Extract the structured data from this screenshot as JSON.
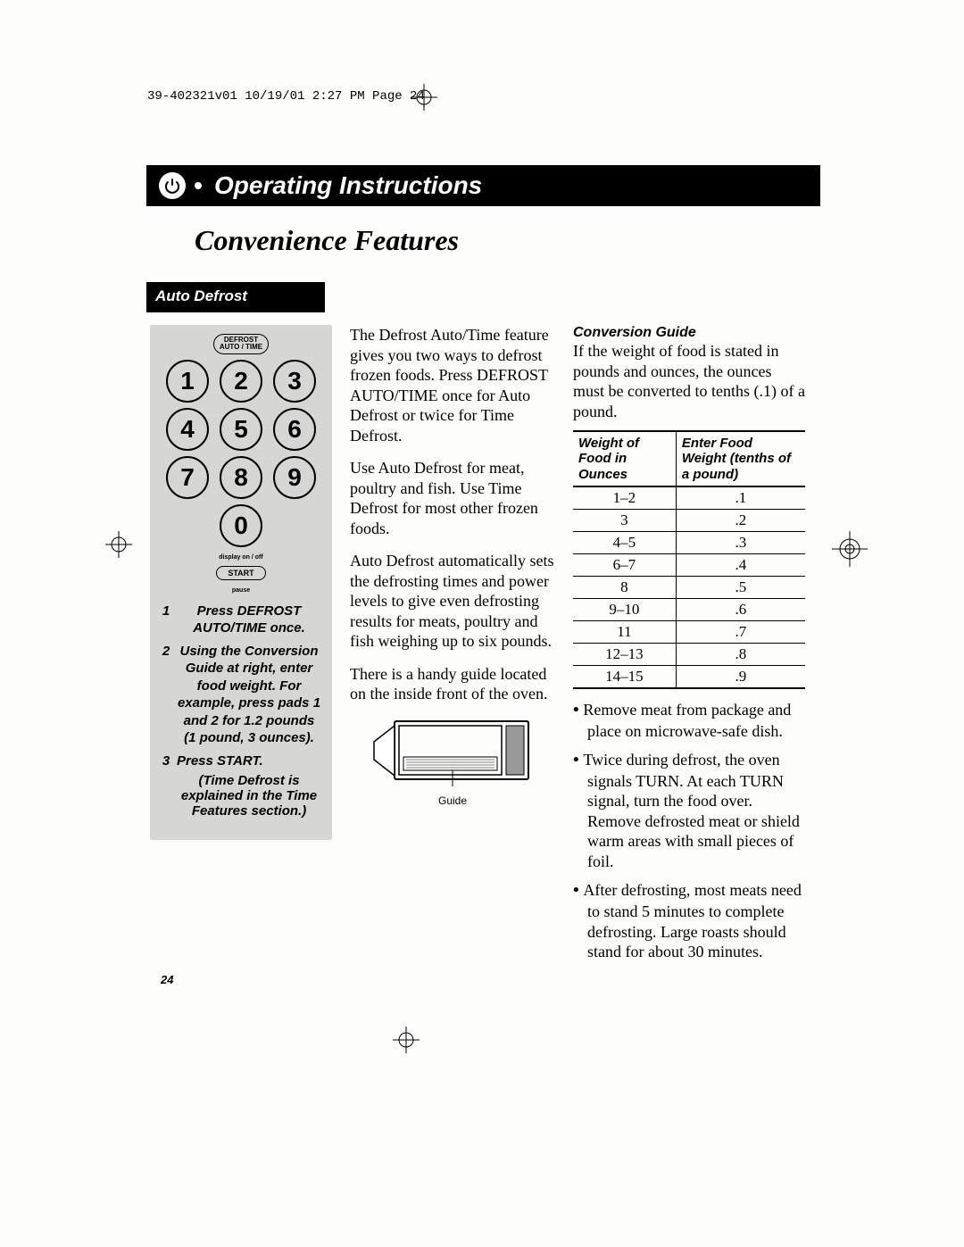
{
  "page_header": "39-402321v01  10/19/01  2:27 PM  Page 24",
  "banner_title": "Operating Instructions",
  "subtitle": "Convenience Features",
  "section_label": "Auto Defrost",
  "keypad": {
    "defrost_line1": "DEFROST",
    "defrost_line2": "AUTO / TIME",
    "numbers": [
      "1",
      "2",
      "3",
      "4",
      "5",
      "6",
      "7",
      "8",
      "9",
      "0"
    ],
    "display_label": "display on / off",
    "start_label": "START",
    "pause_label": "pause"
  },
  "steps": [
    {
      "n": "1",
      "text": "Press DEFROST AUTO/TIME once."
    },
    {
      "n": "2",
      "text": "Using the Conversion Guide at right, enter food weight. For example, press pads 1 and 2 for 1.2 pounds (1 pound, 3 ounces)."
    },
    {
      "n": "3",
      "text": "Press START."
    }
  ],
  "step_note": "(Time Defrost is explained in the Time Features section.)",
  "mid_paragraphs": [
    "The Defrost Auto/Time feature gives you two ways to defrost frozen foods. Press DEFROST AUTO/TIME once for Auto Defrost or twice for Time Defrost.",
    "Use Auto Defrost for meat, poultry and fish. Use Time Defrost for most other frozen foods.",
    "Auto Defrost automatically sets the defrosting times and power levels to give even defrosting results for meats, poultry and fish weighing up to six pounds.",
    "There is a handy guide located on the inside front of the oven."
  ],
  "figure_caption": "Guide",
  "conversion_title": "Conversion Guide",
  "conversion_intro": "If the weight of food is stated in pounds and ounces, the ounces must be converted to tenths (.1) of a pound.",
  "conv_table": {
    "header1": "Weight of Food in Ounces",
    "header2": "Enter Food Weight (tenths of a pound)",
    "rows": [
      [
        "1–2",
        ".1"
      ],
      [
        "3",
        ".2"
      ],
      [
        "4–5",
        ".3"
      ],
      [
        "6–7",
        ".4"
      ],
      [
        "8",
        ".5"
      ],
      [
        "9–10",
        ".6"
      ],
      [
        "11",
        ".7"
      ],
      [
        "12–13",
        ".8"
      ],
      [
        "14–15",
        ".9"
      ]
    ]
  },
  "bullets": [
    "Remove meat from package and place on microwave-safe dish.",
    "Twice during defrost, the oven signals TURN. At each TURN signal, turn the food over. Remove defrosted meat or shield warm areas with small pieces of foil.",
    "After defrosting, most meats need to stand 5 minutes to complete defrosting. Large roasts should stand for about 30 minutes."
  ],
  "page_number": "24",
  "colors": {
    "banner_bg": "#000000",
    "panel_bg": "#d6d6d4",
    "text": "#000000"
  }
}
